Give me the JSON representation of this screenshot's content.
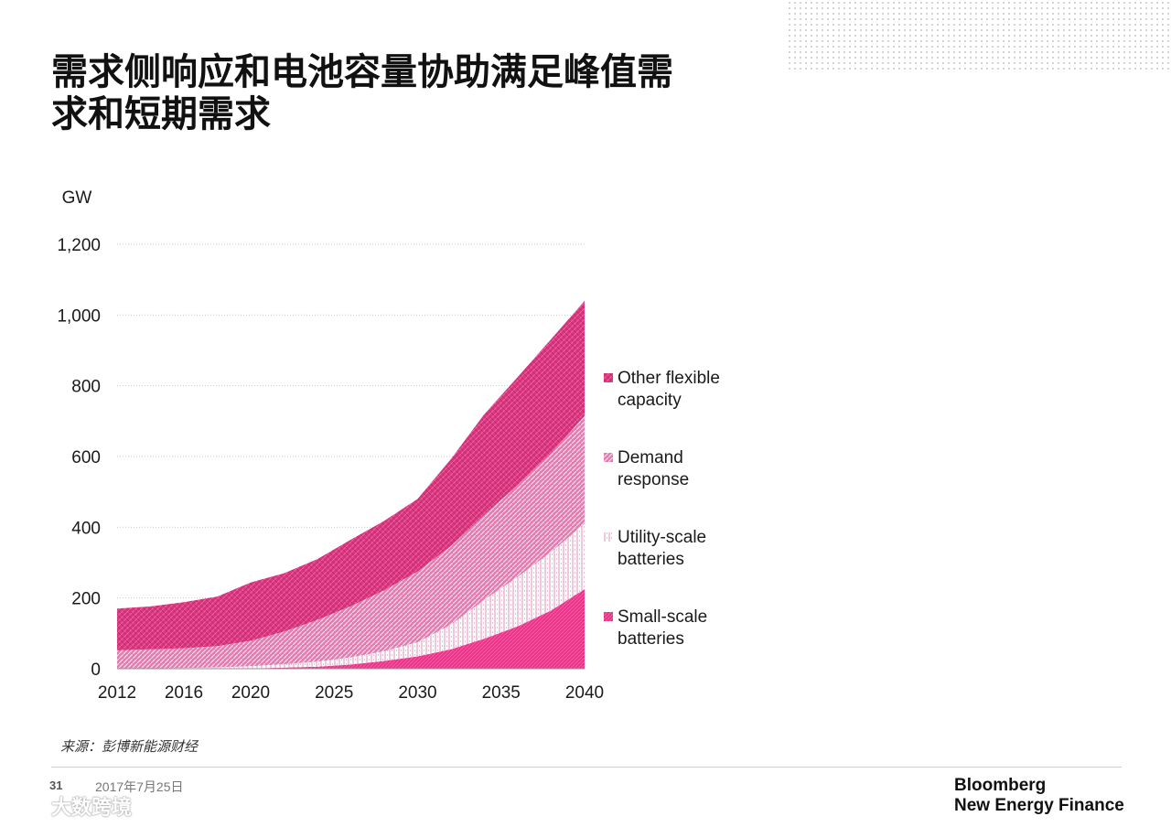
{
  "slide": {
    "title_line1": "需求侧响应和电池容量协助满足峰值需",
    "title_line2": "求和短期需求",
    "source": "来源：彭博新能源财经",
    "page_number": "31",
    "date": "2017年7月25日",
    "brand_line1": "Bloomberg",
    "brand_line2": "New Energy Finance",
    "watermark": "大数跨境"
  },
  "colors": {
    "other_flexible": "#d9367f",
    "demand_response": "#e06aa6",
    "utility_batteries": "#f2c3dc",
    "small_batteries": "#e8358a"
  },
  "chart_data": {
    "type": "area",
    "stacked": true,
    "title": "",
    "ylabel": "GW",
    "xlabel": "",
    "ylim": [
      0,
      1200
    ],
    "yticks": [
      0,
      200,
      400,
      600,
      800,
      1000,
      1200
    ],
    "ytick_labels": [
      "0",
      "200",
      "400",
      "600",
      "800",
      "1,000",
      "1,200"
    ],
    "xticks": [
      2012,
      2016,
      2020,
      2025,
      2030,
      2035,
      2040
    ],
    "grid": true,
    "legend_position": "right",
    "x": [
      2012,
      2014,
      2016,
      2018,
      2020,
      2022,
      2024,
      2026,
      2028,
      2030,
      2032,
      2034,
      2036,
      2038,
      2040
    ],
    "series": [
      {
        "name": "Small-scale batteries",
        "key": "small_batteries",
        "values": [
          0,
          0,
          0,
          0,
          1,
          3,
          6,
          12,
          22,
          35,
          55,
          85,
          120,
          165,
          225
        ]
      },
      {
        "name": "Utility-scale batteries",
        "key": "utility_batteries",
        "values": [
          0,
          1,
          2,
          4,
          6,
          10,
          14,
          20,
          28,
          40,
          70,
          110,
          140,
          165,
          185
        ]
      },
      {
        "name": "Demand response",
        "key": "demand_response",
        "values": [
          52,
          54,
          56,
          60,
          72,
          92,
          118,
          145,
          172,
          200,
          222,
          240,
          260,
          280,
          305
        ]
      },
      {
        "name": "Other flexible capacity",
        "key": "other_flexible",
        "values": [
          118,
          121,
          130,
          140,
          165,
          165,
          172,
          188,
          196,
          205,
          246,
          285,
          305,
          322,
          325
        ]
      }
    ],
    "legend_order": [
      "Other flexible capacity",
      "Demand response",
      "Utility-scale batteries",
      "Small-scale batteries"
    ],
    "legend_labels": [
      [
        "Other flexible",
        "capacity"
      ],
      [
        "Demand",
        "response"
      ],
      [
        "Utility-scale",
        "batteries"
      ],
      [
        "Small-scale",
        "batteries"
      ]
    ]
  }
}
